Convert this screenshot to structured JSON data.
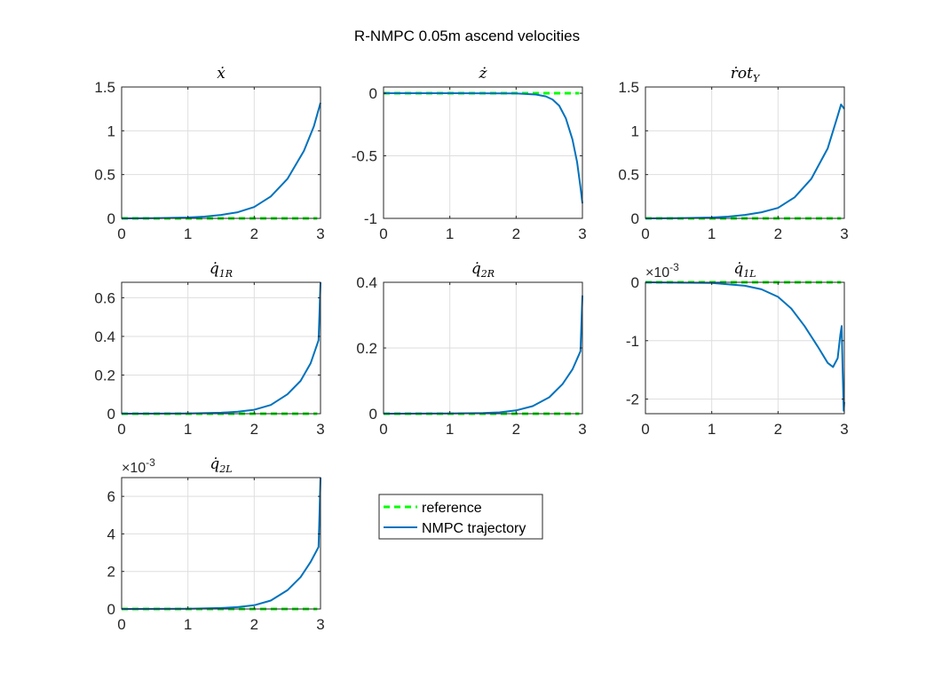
{
  "figure": {
    "title": "R-NMPC 0.05m ascend velocities"
  },
  "legend": {
    "items": [
      {
        "label": "reference",
        "color": "#00ff00",
        "dash": true
      },
      {
        "label": "NMPC trajectory",
        "color": "#0072bd",
        "dash": false
      }
    ]
  },
  "chart_data": [
    {
      "type": "line",
      "title": "ẋ",
      "title_parts": [
        "ẋ",
        ""
      ],
      "xlim": [
        0,
        3
      ],
      "ylim": [
        0,
        1.5
      ],
      "xticks": [
        0,
        1,
        2,
        3
      ],
      "xtick_labels": [
        "0",
        "1",
        "2",
        "3"
      ],
      "yticks": [
        0,
        0.5,
        1,
        1.5
      ],
      "ytick_labels": [
        "0",
        "0.5",
        "1",
        "1.5"
      ],
      "exponent": "",
      "grid": true,
      "series": [
        {
          "role": "reference",
          "x": [
            0,
            3
          ],
          "y": [
            0,
            0
          ],
          "line_end": 2.95
        },
        {
          "role": "trajectory",
          "x": [
            0,
            0.5,
            1.0,
            1.25,
            1.5,
            1.75,
            2.0,
            2.25,
            2.5,
            2.75,
            2.9,
            3.0
          ],
          "y": [
            0,
            0.002,
            0.01,
            0.02,
            0.04,
            0.07,
            0.13,
            0.25,
            0.45,
            0.77,
            1.05,
            1.32
          ]
        }
      ]
    },
    {
      "type": "line",
      "title": "ż",
      "title_parts": [
        "ż",
        ""
      ],
      "xlim": [
        0,
        3
      ],
      "ylim": [
        -1,
        0.05
      ],
      "xticks": [
        0,
        1,
        2,
        3
      ],
      "xtick_labels": [
        "0",
        "1",
        "2",
        "3"
      ],
      "yticks": [
        0,
        -0.5,
        -1
      ],
      "ytick_labels": [
        "0",
        "-0.5",
        "-1"
      ],
      "exponent": "",
      "grid": true,
      "series": [
        {
          "role": "reference",
          "x": [
            0,
            3
          ],
          "y": [
            0,
            0
          ],
          "line_end": 2.95
        },
        {
          "role": "trajectory",
          "x": [
            0,
            1.0,
            2.0,
            2.3,
            2.45,
            2.55,
            2.65,
            2.75,
            2.85,
            2.92,
            2.97,
            3.0
          ],
          "y": [
            0,
            0,
            -0.002,
            -0.01,
            -0.025,
            -0.05,
            -0.1,
            -0.2,
            -0.37,
            -0.55,
            -0.75,
            -0.88
          ]
        }
      ]
    },
    {
      "type": "line",
      "title": "ṙot_Y",
      "title_parts": [
        "ṙot",
        "Y"
      ],
      "xlim": [
        0,
        3
      ],
      "ylim": [
        0,
        1.5
      ],
      "xticks": [
        0,
        1,
        2,
        3
      ],
      "xtick_labels": [
        "0",
        "1",
        "2",
        "3"
      ],
      "yticks": [
        0,
        0.5,
        1,
        1.5
      ],
      "ytick_labels": [
        "0",
        "0.5",
        "1",
        "1.5"
      ],
      "exponent": "",
      "grid": true,
      "series": [
        {
          "role": "reference",
          "x": [
            0,
            3
          ],
          "y": [
            0,
            0
          ],
          "line_end": 2.95
        },
        {
          "role": "trajectory",
          "x": [
            0,
            0.5,
            1.0,
            1.25,
            1.5,
            1.75,
            2.0,
            2.25,
            2.5,
            2.75,
            2.9,
            2.95,
            3.0
          ],
          "y": [
            0,
            0.002,
            0.01,
            0.02,
            0.04,
            0.07,
            0.12,
            0.24,
            0.45,
            0.8,
            1.17,
            1.3,
            1.25
          ]
        }
      ]
    },
    {
      "type": "line",
      "title": "q̇_1R",
      "title_parts": [
        "q̇",
        "1R"
      ],
      "xlim": [
        0,
        3
      ],
      "ylim": [
        0,
        0.68
      ],
      "xticks": [
        0,
        1,
        2,
        3
      ],
      "xtick_labels": [
        "0",
        "1",
        "2",
        "3"
      ],
      "yticks": [
        0,
        0.2,
        0.4,
        0.6
      ],
      "ytick_labels": [
        "0",
        "0.2",
        "0.4",
        "0.6"
      ],
      "exponent": "",
      "grid": true,
      "series": [
        {
          "role": "reference",
          "x": [
            0,
            3
          ],
          "y": [
            0,
            0
          ],
          "line_end": 2.95
        },
        {
          "role": "trajectory",
          "x": [
            0,
            1.0,
            1.5,
            1.75,
            2.0,
            2.25,
            2.5,
            2.7,
            2.85,
            2.97,
            3.0
          ],
          "y": [
            0,
            0.001,
            0.005,
            0.01,
            0.02,
            0.045,
            0.1,
            0.17,
            0.26,
            0.38,
            0.68
          ]
        }
      ]
    },
    {
      "type": "line",
      "title": "q̇_2R",
      "title_parts": [
        "q̇",
        "2R"
      ],
      "xlim": [
        0,
        3
      ],
      "ylim": [
        0,
        0.4
      ],
      "xticks": [
        0,
        1,
        2,
        3
      ],
      "xtick_labels": [
        "0",
        "1",
        "2",
        "3"
      ],
      "yticks": [
        0,
        0.2,
        0.4
      ],
      "ytick_labels": [
        "0",
        "0.2",
        "0.4"
      ],
      "exponent": "",
      "grid": true,
      "series": [
        {
          "role": "reference",
          "x": [
            0,
            3
          ],
          "y": [
            0,
            0
          ],
          "line_end": 2.95
        },
        {
          "role": "trajectory",
          "x": [
            0,
            1.0,
            1.5,
            1.75,
            2.0,
            2.25,
            2.5,
            2.7,
            2.85,
            2.97,
            3.0
          ],
          "y": [
            0,
            0.0005,
            0.002,
            0.004,
            0.01,
            0.023,
            0.05,
            0.09,
            0.135,
            0.19,
            0.36
          ]
        }
      ]
    },
    {
      "type": "line",
      "title": "q̇_1L",
      "title_parts": [
        "q̇",
        "1L"
      ],
      "xlim": [
        0,
        3
      ],
      "ylim": [
        -2.25,
        0
      ],
      "xticks": [
        0,
        1,
        2,
        3
      ],
      "xtick_labels": [
        "0",
        "1",
        "2",
        "3"
      ],
      "yticks": [
        0,
        -1,
        -2
      ],
      "ytick_labels": [
        "0",
        "-1",
        "-2"
      ],
      "exponent": "-3",
      "grid": true,
      "series": [
        {
          "role": "reference",
          "x": [
            0,
            3
          ],
          "y": [
            0,
            0
          ],
          "line_end": 2.95
        },
        {
          "role": "trajectory",
          "x": [
            0,
            1.0,
            1.5,
            1.75,
            2.0,
            2.2,
            2.4,
            2.6,
            2.75,
            2.83,
            2.9,
            2.94,
            2.96,
            2.975,
            2.99,
            3.0
          ],
          "y": [
            0,
            -0.01,
            -0.06,
            -0.12,
            -0.25,
            -0.45,
            -0.75,
            -1.1,
            -1.38,
            -1.45,
            -1.3,
            -0.9,
            -0.75,
            -1.5,
            -2.2,
            -2.05
          ]
        }
      ]
    },
    {
      "type": "line",
      "title": "q̇_2L",
      "title_parts": [
        "q̇",
        "2L"
      ],
      "xlim": [
        0,
        3
      ],
      "ylim": [
        0,
        7
      ],
      "xticks": [
        0,
        1,
        2,
        3
      ],
      "xtick_labels": [
        "0",
        "1",
        "2",
        "3"
      ],
      "yticks": [
        0,
        2,
        4,
        6
      ],
      "ytick_labels": [
        "0",
        "2",
        "4",
        "6"
      ],
      "exponent": "-3",
      "grid": true,
      "series": [
        {
          "role": "reference",
          "x": [
            0,
            3
          ],
          "y": [
            0,
            0
          ],
          "line_end": 2.95
        },
        {
          "role": "trajectory",
          "x": [
            0,
            1.0,
            1.5,
            1.75,
            2.0,
            2.25,
            2.5,
            2.7,
            2.85,
            2.97,
            3.0
          ],
          "y": [
            0,
            0.01,
            0.05,
            0.1,
            0.2,
            0.45,
            1.0,
            1.7,
            2.5,
            3.3,
            7.0
          ]
        }
      ]
    }
  ]
}
